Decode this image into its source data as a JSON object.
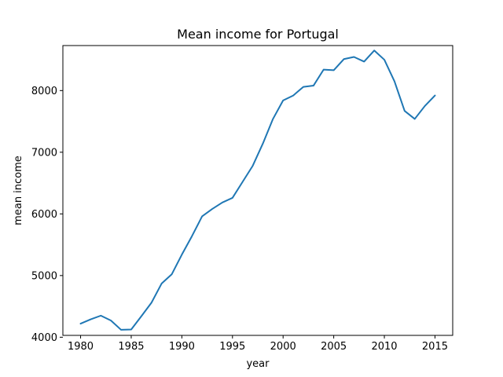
{
  "chart_data": {
    "type": "line",
    "title": "Mean income for Portugal",
    "xlabel": "year",
    "ylabel": "mean income",
    "xlim": [
      1978.25,
      2016.75
    ],
    "ylim": [
      4030,
      8730
    ],
    "xticks": [
      1980,
      1985,
      1990,
      1995,
      2000,
      2005,
      2010,
      2015
    ],
    "yticks": [
      4000,
      5000,
      6000,
      7000,
      8000
    ],
    "grid": false,
    "line_color": "#1f77b4",
    "series": [
      {
        "x": [
          1980,
          1981,
          1982,
          1983,
          1984,
          1985,
          1986,
          1987,
          1988,
          1989,
          1990,
          1991,
          1992,
          1993,
          1994,
          1995,
          1996,
          1997,
          1998,
          1999,
          2000,
          2001,
          2002,
          2003,
          2004,
          2005,
          2006,
          2007,
          2008,
          2009,
          2010,
          2011,
          2012,
          2013,
          2014,
          2015
        ],
        "y": [
          4220,
          4290,
          4350,
          4270,
          4120,
          4125,
          4340,
          4560,
          4870,
          5020,
          5340,
          5640,
          5960,
          6080,
          6185,
          6260,
          6520,
          6780,
          7140,
          7540,
          7840,
          7920,
          8060,
          8080,
          8340,
          8330,
          8510,
          8545,
          8470,
          8650,
          8500,
          8150,
          7670,
          7540,
          7750,
          7920
        ]
      }
    ]
  }
}
